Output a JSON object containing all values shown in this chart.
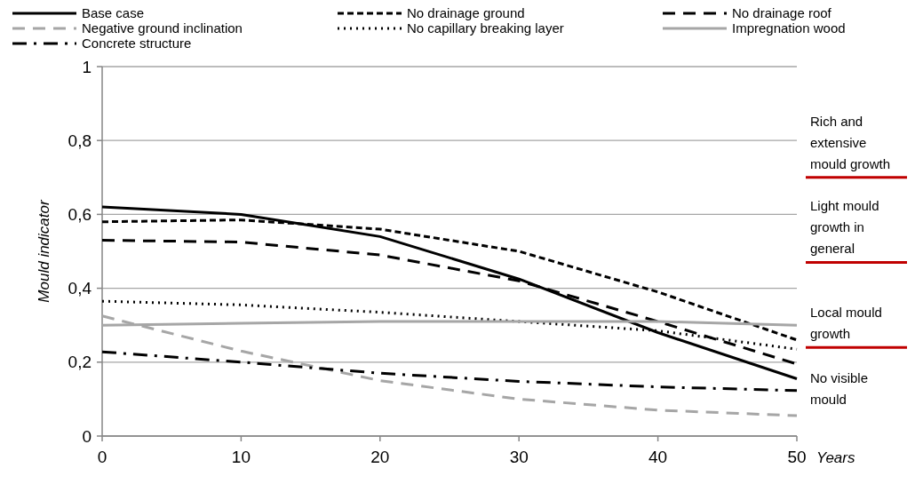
{
  "chart_data": {
    "type": "line",
    "xlabel": "Years",
    "ylabel": "Mould indicator",
    "x": [
      0,
      10,
      20,
      30,
      40,
      50
    ],
    "xlim": [
      0,
      50
    ],
    "xticks": [
      0,
      10,
      20,
      30,
      40,
      50
    ],
    "ylim": [
      0,
      1
    ],
    "yticks": [
      0,
      {
        "value": 0.2,
        "label": "0,2"
      },
      {
        "value": 0.4,
        "label": "0,4"
      },
      {
        "value": 0.6,
        "label": "0,6"
      },
      {
        "value": 0.8,
        "label": "0,8"
      },
      1
    ],
    "grid": "y",
    "legend": "top",
    "marker": "none",
    "series": [
      {
        "name": "Base case",
        "color": "#000000",
        "line_style": "solid",
        "values": [
          0.62,
          0.6,
          0.54,
          0.425,
          0.28,
          0.155
        ]
      },
      {
        "name": "No drainage ground",
        "color": "#000000",
        "line_style": "dashed",
        "values": [
          0.58,
          0.585,
          0.56,
          0.5,
          0.39,
          0.26
        ]
      },
      {
        "name": "No drainage roof",
        "color": "#000000",
        "line_style": "longdash",
        "values": [
          0.53,
          0.525,
          0.49,
          0.42,
          0.31,
          0.195
        ]
      },
      {
        "name": "Negative ground inclination",
        "color": "#a6a6a6",
        "line_style": "longdash",
        "values": [
          0.325,
          0.23,
          0.15,
          0.1,
          0.07,
          0.055
        ]
      },
      {
        "name": "No capillary breaking layer",
        "color": "#000000",
        "line_style": "dotted",
        "values": [
          0.365,
          0.355,
          0.335,
          0.31,
          0.285,
          0.235
        ]
      },
      {
        "name": "Impregnation wood",
        "color": "#a6a6a6",
        "line_style": "solid",
        "values": [
          0.3,
          0.305,
          0.31,
          0.31,
          0.31,
          0.3
        ]
      },
      {
        "name": "Concrete structure",
        "color": "#000000",
        "line_style": "dashdot",
        "values": [
          0.228,
          0.2,
          0.17,
          0.148,
          0.133,
          0.123
        ]
      }
    ],
    "ref_lines": [
      {
        "axis": "y",
        "value": 0.24,
        "label": "Local mould growth",
        "color": "#c00000"
      },
      {
        "axis": "y",
        "value": 0.47,
        "label": "Light mould growth in general",
        "color": "#c00000"
      },
      {
        "axis": "y",
        "value": 0.7,
        "label": "Rich and extensive mould growth",
        "color": "#c00000"
      }
    ],
    "annotations": [
      "No visible mould"
    ]
  }
}
